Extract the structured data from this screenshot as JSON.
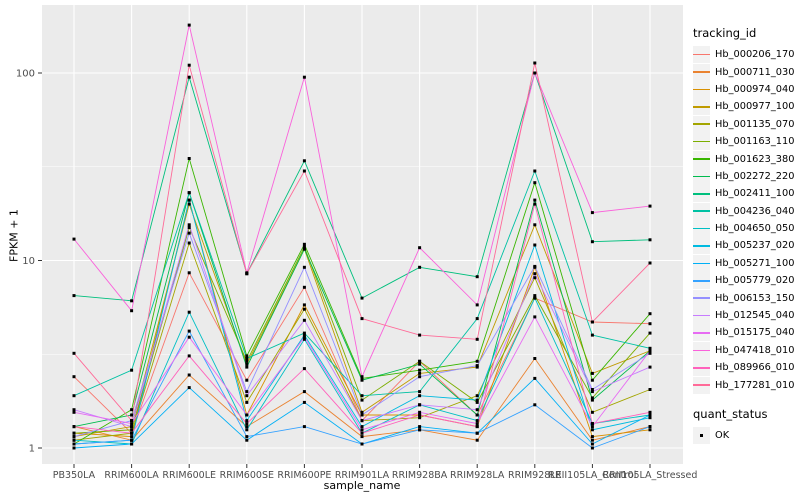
{
  "chart_data": {
    "type": "line",
    "title": "",
    "xlabel": "sample_name",
    "ylabel": "FPKM + 1",
    "y_scale": "log10",
    "y_ticks": [
      1,
      10,
      100
    ],
    "y_minor_breaks": [
      3.162,
      31.62
    ],
    "ylim": [
      0.85,
      210
    ],
    "grid": "major+minor",
    "legend_position": "right",
    "panel_bg": "#EBEBEB",
    "grid_color": "#FFFFFF",
    "tick_color": "#333333",
    "point_shape": "filled-square",
    "point_color": "#000000",
    "categories": [
      "PB350LA",
      "RRIM600LA",
      "RRIM600LE",
      "RRIM600SE",
      "RRIM600PE",
      "RRIM901LA",
      "RRIM928BA",
      "RRIM928LA",
      "RRIM928LE",
      "RRII105LA_Control",
      "RRII105LA_Stressed"
    ],
    "series": [
      {
        "name": "Hb_000206_170",
        "color": "#F8766D",
        "values": [
          2.4,
          1.2,
          8.6,
          2.3,
          7.2,
          1.4,
          2.9,
          1.5,
          6.3,
          4.7,
          4.6
        ]
      },
      {
        "name": "Hb_000711_030",
        "color": "#EA8331",
        "values": [
          1.3,
          1.1,
          2.45,
          1.3,
          2.0,
          1.15,
          1.25,
          1.1,
          3.0,
          1.1,
          1.3
        ]
      },
      {
        "name": "Hb_000974_040",
        "color": "#D89000",
        "values": [
          1.2,
          1.15,
          21,
          1.5,
          5.8,
          1.5,
          1.5,
          1.3,
          9.2,
          1.15,
          1.25
        ]
      },
      {
        "name": "Hb_000977_100",
        "color": "#C09B00",
        "values": [
          1.15,
          1.3,
          20,
          2.8,
          11.5,
          1.55,
          2.5,
          2.7,
          15.5,
          2.5,
          3.3
        ]
      },
      {
        "name": "Hb_001135_070",
        "color": "#A3A500",
        "values": [
          1.1,
          1.2,
          12.4,
          1.75,
          5.5,
          1.4,
          1.45,
          1.9,
          8.1,
          1.55,
          2.05
        ]
      },
      {
        "name": "Hb_001163_110",
        "color": "#7CAE00",
        "values": [
          1.2,
          1.25,
          15,
          2.9,
          11.8,
          1.8,
          2.9,
          1.75,
          6.5,
          1.85,
          4.1
        ]
      },
      {
        "name": "Hb_001623_380",
        "color": "#39B600",
        "values": [
          1.05,
          1.6,
          35,
          3.1,
          12.2,
          2.35,
          2.6,
          2.9,
          26,
          2.3,
          5.2
        ]
      },
      {
        "name": "Hb_002272_220",
        "color": "#00BB4E",
        "values": [
          1.3,
          1.5,
          23,
          2.7,
          11.5,
          2.3,
          2.8,
          1.5,
          21,
          1.8,
          3.3
        ]
      },
      {
        "name": "Hb_002411_100",
        "color": "#00BF7D",
        "values": [
          6.5,
          6.1,
          95,
          8.5,
          34,
          6.3,
          9.2,
          8.2,
          100,
          12.6,
          12.9
        ]
      },
      {
        "name": "Hb_004236_040",
        "color": "#00C1A3",
        "values": [
          1.9,
          2.6,
          23,
          3.0,
          4.1,
          1.9,
          2.0,
          4.9,
          30,
          4.0,
          3.4
        ]
      },
      {
        "name": "Hb_004650_050",
        "color": "#00BFC4",
        "values": [
          1.1,
          1.05,
          5.3,
          1.25,
          3.8,
          1.2,
          1.7,
          1.4,
          6.3,
          1.35,
          1.5
        ]
      },
      {
        "name": "Hb_005237_020",
        "color": "#00BAE0",
        "values": [
          1.05,
          1.1,
          21,
          1.4,
          4.0,
          1.3,
          1.9,
          1.8,
          12.1,
          1.25,
          1.45
        ]
      },
      {
        "name": "Hb_005271_100",
        "color": "#00B0F6",
        "values": [
          1.0,
          1.05,
          2.1,
          1.1,
          1.75,
          1.05,
          1.3,
          1.2,
          2.35,
          1.05,
          1.5
        ]
      },
      {
        "name": "Hb_005779_020",
        "color": "#35A2FF",
        "values": [
          1.05,
          1.1,
          4.2,
          1.15,
          1.3,
          1.05,
          1.25,
          1.2,
          1.7,
          1.0,
          1.3
        ]
      },
      {
        "name": "Hb_006153_150",
        "color": "#9590FF",
        "values": [
          1.15,
          1.4,
          14,
          2.0,
          9.2,
          1.5,
          2.4,
          2.75,
          9.3,
          2.05,
          3.2
        ]
      },
      {
        "name": "Hb_012545_040",
        "color": "#C77CFF",
        "values": [
          1.6,
          1.3,
          15.5,
          1.9,
          4.8,
          1.4,
          1.7,
          1.6,
          8.5,
          2.0,
          2.7
        ]
      },
      {
        "name": "Hb_015175_040",
        "color": "#E76BF3",
        "values": [
          1.55,
          1.35,
          3.9,
          1.5,
          3.9,
          1.25,
          1.55,
          1.35,
          5.0,
          1.3,
          3.3
        ]
      },
      {
        "name": "Hb_047418_010",
        "color": "#FA62DB",
        "values": [
          13,
          5.4,
          180,
          8.6,
          95,
          2.4,
          11.7,
          5.8,
          100,
          18,
          19.5
        ]
      },
      {
        "name": "Hb_089966_010",
        "color": "#FF62BC",
        "values": [
          1.3,
          1.2,
          3.1,
          1.35,
          2.65,
          1.2,
          1.5,
          1.3,
          20,
          1.35,
          1.55
        ]
      },
      {
        "name": "Hb_177281_010",
        "color": "#FF6A98",
        "values": [
          3.2,
          1.4,
          110,
          8.5,
          30,
          4.9,
          4.0,
          3.8,
          113,
          4.7,
          9.7
        ]
      }
    ]
  },
  "legend": {
    "tracking_title": "tracking_id",
    "quant_title": "quant_status",
    "quant_items": [
      "OK"
    ]
  }
}
